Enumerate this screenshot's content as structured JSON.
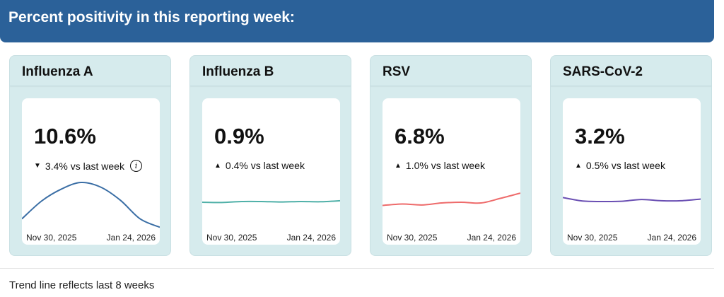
{
  "header": {
    "title": "Percent positivity in this reporting week:"
  },
  "cards": [
    {
      "title": "Influenza A",
      "value": "10.6%",
      "direction": "down",
      "change": "3.4% vs last week",
      "info": true,
      "color": "#3a6ea5",
      "trend": [
        5.3,
        12.5,
        17.3,
        20,
        18.1,
        12.8,
        5.3,
        1.9
      ],
      "start_date": "Nov 30, 2025",
      "end_date": "Jan 24, 2026"
    },
    {
      "title": "Influenza B",
      "value": "0.9%",
      "direction": "up",
      "change": "0.4% vs last week",
      "info": false,
      "color": "#4fb0a8",
      "trend": [
        12,
        11.9,
        12.3,
        12.3,
        12.1,
        12.3,
        12.2,
        12.6
      ],
      "start_date": "Nov 30, 2025",
      "end_date": "Jan 24, 2026"
    },
    {
      "title": "RSV",
      "value": "6.8%",
      "direction": "up",
      "change": "1.0% vs last week",
      "info": false,
      "color": "#ee6b6b",
      "trend": [
        10.7,
        11.3,
        10.9,
        11.7,
        12,
        11.7,
        13.6,
        15.7
      ],
      "start_date": "Nov 30, 2025",
      "end_date": "Jan 24, 2026"
    },
    {
      "title": "SARS-CoV-2",
      "value": "3.2%",
      "direction": "up",
      "change": "0.5% vs last week",
      "info": false,
      "color": "#6a4fb3",
      "trend": [
        13.9,
        12.5,
        12.3,
        12.4,
        13.1,
        12.6,
        12.6,
        13.3
      ],
      "start_date": "Nov 30, 2025",
      "end_date": "Jan 24, 2026"
    }
  ],
  "footer": {
    "note": "Trend line reflects last 8 weeks"
  }
}
